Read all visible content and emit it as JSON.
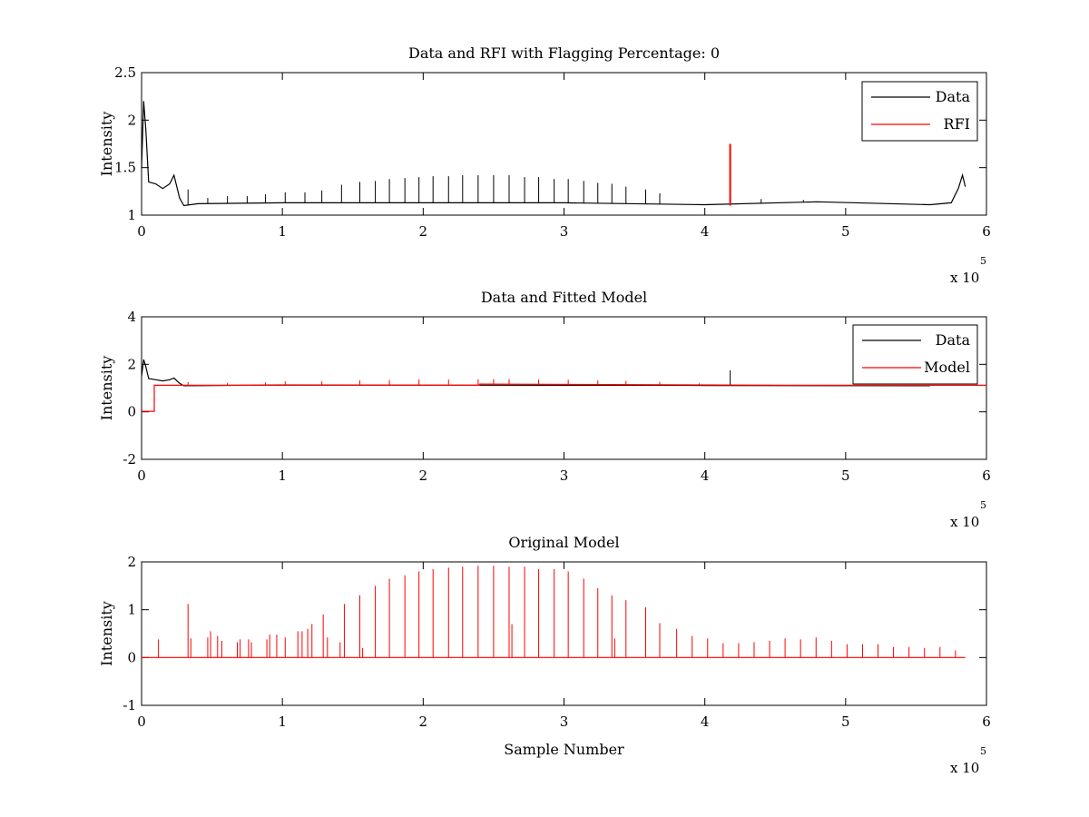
{
  "chart_data": [
    {
      "type": "line",
      "title": "Data and RFI with Flagging Percentage: 0",
      "xlabel": "",
      "ylabel": "Intensity",
      "xlim": [
        0,
        600000
      ],
      "ylim": [
        1,
        2.5
      ],
      "xticks": [
        "0",
        "1",
        "2",
        "3",
        "4",
        "5",
        "6"
      ],
      "yticks": [
        "1",
        "1.5",
        "2",
        "2.5"
      ],
      "x_multiplier": "x 10",
      "x_multiplier_exp": "5",
      "legend": {
        "placement": "top-right",
        "entries": [
          "Data",
          "RFI"
        ]
      },
      "grid": false,
      "series": [
        {
          "name": "Data",
          "color": "#000000",
          "baseline": [
            [
              0,
              1.5
            ],
            [
              1500,
              2.2
            ],
            [
              3000,
              1.9
            ],
            [
              5000,
              1.35
            ],
            [
              10000,
              1.33
            ],
            [
              15000,
              1.28
            ],
            [
              20000,
              1.33
            ],
            [
              23000,
              1.42
            ],
            [
              27000,
              1.18
            ],
            [
              30000,
              1.1
            ],
            [
              40000,
              1.12
            ],
            [
              100000,
              1.13
            ],
            [
              200000,
              1.13
            ],
            [
              300000,
              1.13
            ],
            [
              400000,
              1.11
            ],
            [
              480000,
              1.14
            ],
            [
              560000,
              1.11
            ],
            [
              575000,
              1.13
            ],
            [
              580000,
              1.28
            ],
            [
              583000,
              1.42
            ],
            [
              585000,
              1.3
            ]
          ],
          "spikes": [
            [
              33000,
              1.27
            ],
            [
              47000,
              1.18
            ],
            [
              61000,
              1.2
            ],
            [
              75000,
              1.2
            ],
            [
              88000,
              1.22
            ],
            [
              102000,
              1.24
            ],
            [
              116000,
              1.24
            ],
            [
              128000,
              1.26
            ],
            [
              142000,
              1.32
            ],
            [
              155000,
              1.35
            ],
            [
              166000,
              1.36
            ],
            [
              176000,
              1.38
            ],
            [
              187000,
              1.39
            ],
            [
              197000,
              1.4
            ],
            [
              207000,
              1.41
            ],
            [
              218000,
              1.41
            ],
            [
              228000,
              1.42
            ],
            [
              239000,
              1.42
            ],
            [
              250000,
              1.42
            ],
            [
              261000,
              1.42
            ],
            [
              272000,
              1.4
            ],
            [
              282000,
              1.4
            ],
            [
              293000,
              1.38
            ],
            [
              303000,
              1.38
            ],
            [
              314000,
              1.36
            ],
            [
              324000,
              1.34
            ],
            [
              334000,
              1.33
            ],
            [
              344000,
              1.3
            ],
            [
              358000,
              1.27
            ],
            [
              368000,
              1.23
            ],
            [
              440000,
              1.17
            ],
            [
              470000,
              1.16
            ]
          ]
        },
        {
          "name": "RFI",
          "color": "#ff0000",
          "spikes": [
            [
              418000,
              1.75
            ]
          ]
        }
      ]
    },
    {
      "type": "line",
      "title": "Data and Fitted Model",
      "xlabel": "",
      "ylabel": "Intensity",
      "xlim": [
        0,
        600000
      ],
      "ylim": [
        -2,
        4
      ],
      "xticks": [
        "0",
        "1",
        "2",
        "3",
        "4",
        "5",
        "6"
      ],
      "yticks": [
        "-2",
        "0",
        "2",
        "4"
      ],
      "x_multiplier": "x 10",
      "x_multiplier_exp": "5",
      "legend": {
        "placement": "top-right",
        "entries": [
          "Data",
          "Model"
        ]
      },
      "grid": false,
      "series": [
        {
          "name": "Data",
          "color": "#000000",
          "baseline": [
            [
              0,
              1.5
            ],
            [
              1500,
              2.2
            ],
            [
              3000,
              1.9
            ],
            [
              5000,
              1.4
            ],
            [
              10000,
              1.35
            ],
            [
              15000,
              1.3
            ],
            [
              20000,
              1.35
            ],
            [
              23000,
              1.42
            ],
            [
              27000,
              1.2
            ],
            [
              30000,
              1.1
            ],
            [
              100000,
              1.13
            ],
            [
              400000,
              1.11
            ],
            [
              560000,
              1.1
            ]
          ],
          "spikes": [
            [
              418000,
              1.75
            ]
          ]
        },
        {
          "name": "Model",
          "color": "#ff0000",
          "baseline": [
            [
              0,
              0.02
            ],
            [
              9000,
              0.02
            ],
            [
              9000,
              1.12
            ],
            [
              240000,
              1.12
            ],
            [
              240000,
              1.17
            ],
            [
              457000,
              1.12
            ],
            [
              600000,
              1.12
            ]
          ],
          "spikes": [
            [
              33000,
              1.25
            ],
            [
              61000,
              1.22
            ],
            [
              88000,
              1.24
            ],
            [
              102000,
              1.28
            ],
            [
              128000,
              1.28
            ],
            [
              155000,
              1.32
            ],
            [
              176000,
              1.34
            ],
            [
              197000,
              1.36
            ],
            [
              218000,
              1.36
            ],
            [
              239000,
              1.37
            ],
            [
              250000,
              1.38
            ],
            [
              261000,
              1.38
            ],
            [
              282000,
              1.36
            ],
            [
              303000,
              1.35
            ],
            [
              324000,
              1.32
            ],
            [
              344000,
              1.3
            ],
            [
              368000,
              1.26
            ],
            [
              396000,
              1.2
            ]
          ]
        }
      ]
    },
    {
      "type": "line",
      "title": "Original Model",
      "xlabel": "Sample Number",
      "ylabel": "Intensity",
      "xlim": [
        0,
        600000
      ],
      "ylim": [
        -1,
        2
      ],
      "xticks": [
        "0",
        "1",
        "2",
        "3",
        "4",
        "5",
        "6"
      ],
      "yticks": [
        "-1",
        "0",
        "1",
        "2"
      ],
      "x_multiplier": "x 10",
      "x_multiplier_exp": "5",
      "grid": false,
      "series": [
        {
          "color": "#ff0000",
          "baseline": [
            [
              0,
              0
            ],
            [
              585000,
              0
            ]
          ],
          "spikes": [
            [
              12000,
              0.38
            ],
            [
              33000,
              1.12
            ],
            [
              35000,
              0.4
            ],
            [
              47000,
              0.42
            ],
            [
              49000,
              0.55
            ],
            [
              54000,
              0.45
            ],
            [
              57000,
              0.35
            ],
            [
              68000,
              0.32
            ],
            [
              70000,
              0.38
            ],
            [
              76000,
              0.38
            ],
            [
              78000,
              0.32
            ],
            [
              89000,
              0.38
            ],
            [
              91000,
              0.48
            ],
            [
              96000,
              0.48
            ],
            [
              102000,
              0.42
            ],
            [
              111000,
              0.55
            ],
            [
              114000,
              0.55
            ],
            [
              118000,
              0.6
            ],
            [
              121000,
              0.7
            ],
            [
              129000,
              0.9
            ],
            [
              132000,
              0.42
            ],
            [
              141000,
              0.32
            ],
            [
              144000,
              1.12
            ],
            [
              155000,
              1.3
            ],
            [
              157000,
              0.2
            ],
            [
              166000,
              1.5
            ],
            [
              176000,
              1.65
            ],
            [
              187000,
              1.72
            ],
            [
              197000,
              1.8
            ],
            [
              207000,
              1.85
            ],
            [
              218000,
              1.88
            ],
            [
              228000,
              1.9
            ],
            [
              239000,
              1.92
            ],
            [
              250000,
              1.92
            ],
            [
              261000,
              1.9
            ],
            [
              263000,
              0.7
            ],
            [
              272000,
              1.9
            ],
            [
              282000,
              1.85
            ],
            [
              293000,
              1.85
            ],
            [
              303000,
              1.8
            ],
            [
              314000,
              1.65
            ],
            [
              324000,
              1.45
            ],
            [
              334000,
              1.3
            ],
            [
              336000,
              0.4
            ],
            [
              344000,
              1.2
            ],
            [
              358000,
              1.05
            ],
            [
              368000,
              0.72
            ],
            [
              380000,
              0.6
            ],
            [
              391000,
              0.45
            ],
            [
              402000,
              0.4
            ],
            [
              413000,
              0.3
            ],
            [
              424000,
              0.3
            ],
            [
              435000,
              0.32
            ],
            [
              446000,
              0.35
            ],
            [
              457000,
              0.4
            ],
            [
              468000,
              0.38
            ],
            [
              479000,
              0.42
            ],
            [
              490000,
              0.35
            ],
            [
              501000,
              0.28
            ],
            [
              512000,
              0.28
            ],
            [
              523000,
              0.28
            ],
            [
              534000,
              0.22
            ],
            [
              545000,
              0.22
            ],
            [
              556000,
              0.2
            ],
            [
              567000,
              0.22
            ],
            [
              578000,
              0.15
            ]
          ]
        }
      ]
    }
  ]
}
